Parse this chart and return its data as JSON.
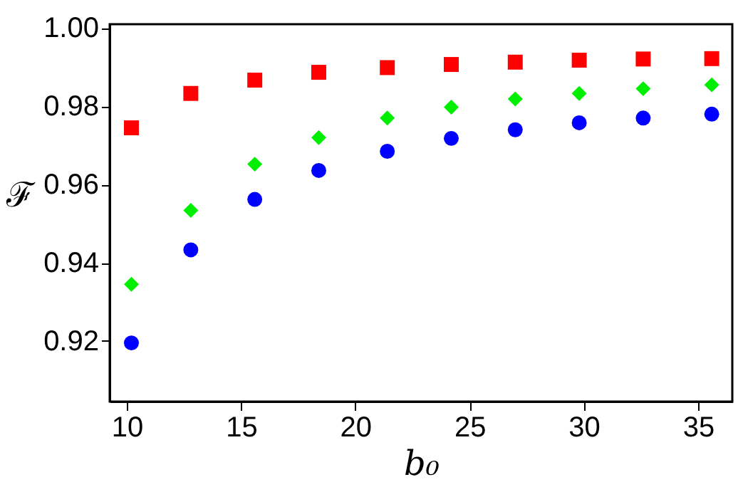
{
  "chart_data": {
    "type": "scatter",
    "xlabel": "b₀",
    "ylabel": "ℱ",
    "x": [
      10.2,
      12.8,
      15.6,
      18.4,
      21.4,
      24.2,
      27.0,
      29.8,
      32.6,
      35.6
    ],
    "series": [
      {
        "color": "#ff0000",
        "marker": "square",
        "values": [
          0.9745,
          0.9833,
          0.9867,
          0.9887,
          0.9899,
          0.9907,
          0.9913,
          0.9918,
          0.9921,
          0.9922
        ]
      },
      {
        "color": "#00ee00",
        "marker": "diamond",
        "values": [
          0.9345,
          0.9534,
          0.9652,
          0.972,
          0.977,
          0.9798,
          0.9819,
          0.9833,
          0.9845,
          0.9855
        ]
      },
      {
        "color": "#0000ff",
        "marker": "circle",
        "values": [
          0.9195,
          0.9433,
          0.9562,
          0.9636,
          0.9685,
          0.9718,
          0.974,
          0.9758,
          0.977,
          0.978
        ]
      }
    ],
    "xlim": [
      9.25,
      36.5
    ],
    "ylim": [
      0.9045,
      1.001
    ],
    "xticks": [
      10,
      15,
      20,
      25,
      30,
      35
    ],
    "yticks": [
      {
        "value": 0.92,
        "label": "0.92"
      },
      {
        "value": 0.94,
        "label": "0.94"
      },
      {
        "value": 0.96,
        "label": "0.96"
      },
      {
        "value": 0.98,
        "label": "0.98"
      },
      {
        "value": 1.0,
        "label": "1.00"
      }
    ],
    "grid": false,
    "legend": false
  }
}
